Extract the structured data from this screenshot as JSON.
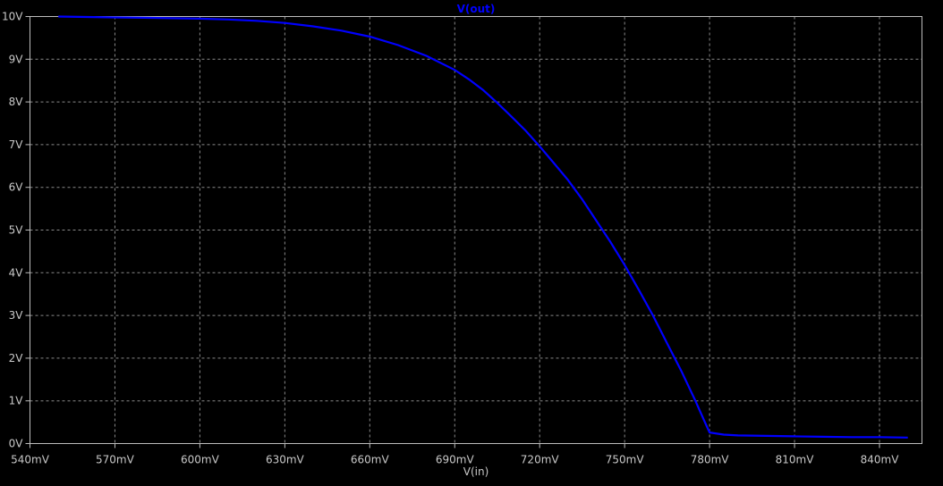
{
  "chart_data": {
    "type": "line",
    "title": "V(out)",
    "xlabel": "V(in)",
    "ylabel": "",
    "xlim": [
      540,
      855
    ],
    "ylim": [
      0,
      10
    ],
    "grid": true,
    "x_tick_values": [
      540,
      570,
      600,
      630,
      660,
      690,
      720,
      750,
      780,
      810,
      840
    ],
    "x_tick_labels": [
      "540mV",
      "570mV",
      "600mV",
      "630mV",
      "660mV",
      "690mV",
      "720mV",
      "750mV",
      "780mV",
      "810mV",
      "840mV"
    ],
    "y_tick_values": [
      0,
      1,
      2,
      3,
      4,
      5,
      6,
      7,
      8,
      9,
      10
    ],
    "y_tick_labels": [
      "0V",
      "1V",
      "2V",
      "3V",
      "4V",
      "5V",
      "6V",
      "7V",
      "8V",
      "9V",
      "10V"
    ],
    "series": [
      {
        "name": "V(out)",
        "color": "#0000ff",
        "x": [
          550,
          560,
          570,
          580,
          590,
          600,
          610,
          620,
          630,
          640,
          650,
          660,
          670,
          680,
          690,
          695,
          700,
          705,
          710,
          715,
          720,
          725,
          730,
          735,
          740,
          745,
          750,
          755,
          760,
          765,
          770,
          775,
          778,
          780,
          785,
          790,
          800,
          810,
          820,
          830,
          840,
          850
        ],
        "y": [
          10.0,
          9.99,
          9.98,
          9.97,
          9.96,
          9.95,
          9.93,
          9.9,
          9.85,
          9.77,
          9.67,
          9.53,
          9.33,
          9.08,
          8.75,
          8.53,
          8.28,
          7.98,
          7.66,
          7.33,
          6.96,
          6.57,
          6.17,
          5.72,
          5.22,
          4.72,
          4.18,
          3.6,
          3.0,
          2.35,
          1.7,
          1.0,
          0.55,
          0.26,
          0.21,
          0.19,
          0.18,
          0.17,
          0.16,
          0.15,
          0.15,
          0.14
        ]
      }
    ]
  }
}
